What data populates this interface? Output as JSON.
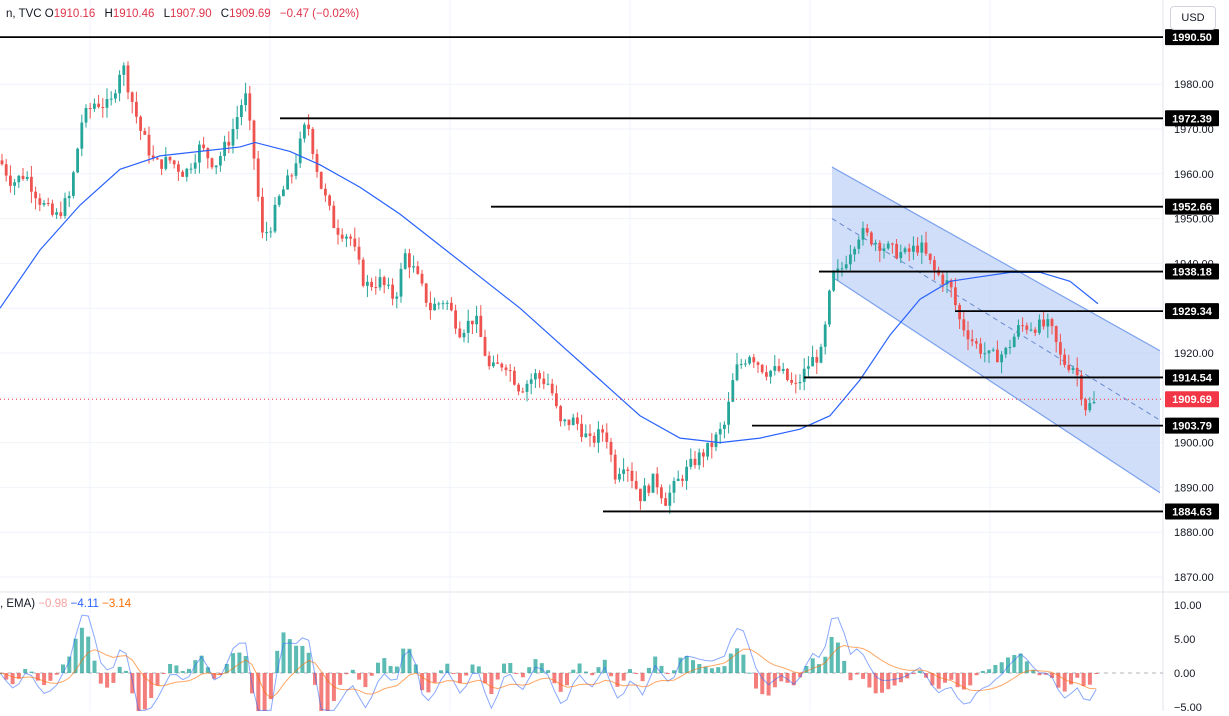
{
  "header": {
    "symbol_suffix": "n, TVC",
    "open_label": "O",
    "open": "1910.16",
    "high_label": "H",
    "high": "1910.46",
    "low_label": "L",
    "low": "1907.90",
    "close_label": "C",
    "close": "1909.69",
    "change": "−0.47 (−0.02%)"
  },
  "currency_button": "USD",
  "macd_legend": {
    "name": ", EMA)",
    "v1": "−0.98",
    "v2": "−4.11",
    "v3": "−3.14"
  },
  "colors": {
    "up": "#26a69a",
    "down": "#ef5350",
    "ma": "#2962ff",
    "channel_fill": "#bcd0f7",
    "channel_line": "#7da2ee",
    "current_price": "#f23645",
    "macd_line": "#2962ff",
    "signal_line": "#ff6d00"
  },
  "chart_data": [
    {
      "type": "line",
      "panel": "price",
      "ylim": [
        1866,
        1992
      ],
      "y_ticks": [
        "1870.00",
        "1880.00",
        "1890.00",
        "1900.00",
        "1910.00",
        "1920.00",
        "1930.00",
        "1940.00",
        "1950.00",
        "1960.00",
        "1970.00",
        "1980.00"
      ],
      "current_price": "1909.69",
      "levels": [
        {
          "label": "1990.50",
          "value": 1990.5
        },
        {
          "label": "1972.39",
          "value": 1972.39
        },
        {
          "label": "1952.66",
          "value": 1952.66
        },
        {
          "label": "1938.18",
          "value": 1938.18
        },
        {
          "label": "1929.34",
          "value": 1929.34
        },
        {
          "label": "1914.54",
          "value": 1914.54
        },
        {
          "label": "1903.79",
          "value": 1903.79
        },
        {
          "label": "1884.63",
          "value": 1884.63
        }
      ],
      "close_path": [
        [
          0,
          1963
        ],
        [
          12,
          1958
        ],
        [
          25,
          1960
        ],
        [
          40,
          1954
        ],
        [
          55,
          1950
        ],
        [
          70,
          1955
        ],
        [
          82,
          1972
        ],
        [
          95,
          1976
        ],
        [
          110,
          1975
        ],
        [
          122,
          1985
        ],
        [
          130,
          1978
        ],
        [
          140,
          1970
        ],
        [
          155,
          1962
        ],
        [
          170,
          1963
        ],
        [
          185,
          1960
        ],
        [
          200,
          1966
        ],
        [
          215,
          1962
        ],
        [
          230,
          1968
        ],
        [
          245,
          1978
        ],
        [
          255,
          1962
        ],
        [
          262,
          1946
        ],
        [
          270,
          1948
        ],
        [
          280,
          1955
        ],
        [
          292,
          1960
        ],
        [
          307,
          1972
        ],
        [
          320,
          1958
        ],
        [
          335,
          1948
        ],
        [
          350,
          1946
        ],
        [
          365,
          1935
        ],
        [
          380,
          1936
        ],
        [
          395,
          1932
        ],
        [
          405,
          1942
        ],
        [
          415,
          1938
        ],
        [
          430,
          1930
        ],
        [
          445,
          1932
        ],
        [
          460,
          1925
        ],
        [
          475,
          1928
        ],
        [
          490,
          1916
        ],
        [
          505,
          1918
        ],
        [
          520,
          1912
        ],
        [
          535,
          1915
        ],
        [
          550,
          1913
        ],
        [
          560,
          1904
        ],
        [
          575,
          1905
        ],
        [
          590,
          1900
        ],
        [
          605,
          1903
        ],
        [
          615,
          1893
        ],
        [
          625,
          1896
        ],
        [
          640,
          1888
        ],
        [
          655,
          1892
        ],
        [
          665,
          1887
        ],
        [
          680,
          1892
        ],
        [
          695,
          1896
        ],
        [
          710,
          1899
        ],
        [
          725,
          1904
        ],
        [
          735,
          1916
        ],
        [
          750,
          1920
        ],
        [
          765,
          1916
        ],
        [
          780,
          1916
        ],
        [
          795,
          1912
        ],
        [
          810,
          1918
        ],
        [
          822,
          1920
        ],
        [
          832,
          1937
        ],
        [
          840,
          1938
        ],
        [
          850,
          1943
        ],
        [
          860,
          1947
        ],
        [
          875,
          1945
        ],
        [
          890,
          1943
        ],
        [
          905,
          1942
        ],
        [
          920,
          1944
        ],
        [
          935,
          1938
        ],
        [
          950,
          1935
        ],
        [
          960,
          1927
        ],
        [
          975,
          1922
        ],
        [
          990,
          1919
        ],
        [
          1005,
          1920
        ],
        [
          1020,
          1926
        ],
        [
          1035,
          1926
        ],
        [
          1050,
          1926
        ],
        [
          1062,
          1918
        ],
        [
          1075,
          1917
        ],
        [
          1085,
          1908
        ],
        [
          1100,
          1909
        ]
      ],
      "ma_path": [
        [
          0,
          1930
        ],
        [
          40,
          1943
        ],
        [
          80,
          1953
        ],
        [
          120,
          1961
        ],
        [
          160,
          1964
        ],
        [
          200,
          1965
        ],
        [
          240,
          1966
        ],
        [
          255,
          1967
        ],
        [
          290,
          1965
        ],
        [
          320,
          1962
        ],
        [
          360,
          1957
        ],
        [
          400,
          1951
        ],
        [
          440,
          1944
        ],
        [
          480,
          1937
        ],
        [
          520,
          1930
        ],
        [
          560,
          1922
        ],
        [
          600,
          1914
        ],
        [
          640,
          1906
        ],
        [
          680,
          1901
        ],
        [
          720,
          1900
        ],
        [
          760,
          1901
        ],
        [
          800,
          1903
        ],
        [
          830,
          1906
        ],
        [
          860,
          1914
        ],
        [
          890,
          1924
        ],
        [
          920,
          1932
        ],
        [
          950,
          1936
        ],
        [
          980,
          1937
        ],
        [
          1010,
          1938
        ],
        [
          1040,
          1938
        ],
        [
          1070,
          1936
        ],
        [
          1098,
          1931
        ]
      ]
    },
    {
      "type": "bar",
      "panel": "macd",
      "ylim": [
        -5,
        12
      ],
      "y_ticks": [
        "10.00",
        "5.00",
        "0.00",
        "−5.00"
      ]
    }
  ]
}
